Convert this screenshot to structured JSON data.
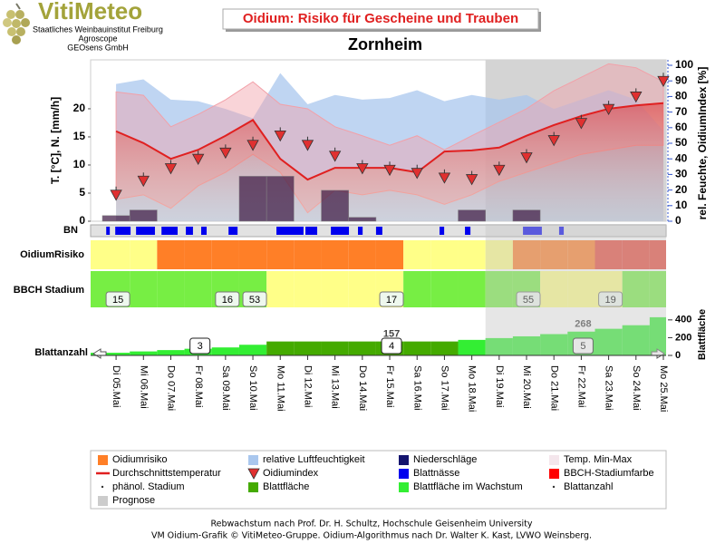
{
  "header": {
    "logo": "VitiMeteo",
    "institutions": [
      "Staatliches Weinbauinstitut Freiburg",
      "Agroscope",
      "GEOsens GmbH"
    ]
  },
  "chart_data": {
    "type": "combo",
    "title": "Oidium: Risiko für Gescheine und Trauben",
    "subtitle": "Zornheim",
    "categories": [
      "Di 05.Mai",
      "Mi 06.Mai",
      "Do 07.Mai",
      "Fr 08.Mai",
      "Sa 09.Mai",
      "So 10.Mai",
      "Mo 11.Mai",
      "Di 12.Mai",
      "Mi 13.Mai",
      "Do 14.Mai",
      "Fr 15.Mai",
      "Sa 16.Mai",
      "So 17.Mai",
      "Mo 18.Mai",
      "Di 19.Mai",
      "Mi 20.Mai",
      "Do 21.Mai",
      "Fr 22.Mai",
      "Sa 23.Mai",
      "So 24.Mai",
      "Mo 25.Mai"
    ],
    "forecast_start": 14,
    "main": {
      "ylabel": "T. [°C], N. [mm/h]",
      "y2label": "rel. Feuchte, OidiumIndex [%]",
      "ylim": [
        0,
        28.7
      ],
      "yticks": [
        0,
        5,
        10,
        15,
        20
      ],
      "y2lim": [
        0,
        103.5
      ],
      "y2ticks": [
        0,
        10,
        20,
        30,
        40,
        50,
        60,
        70,
        80,
        90,
        100
      ],
      "humidity": {
        "color": "#a9c7ee",
        "axis": "y2",
        "values": [
          88,
          91,
          78,
          77,
          72,
          66,
          95,
          75,
          81,
          78,
          79,
          84,
          77,
          81,
          78,
          81,
          72,
          78,
          84,
          78,
          58
        ]
      },
      "temp_range": {
        "color": "#f2a0a8",
        "max": [
          23,
          22.4,
          16.8,
          19,
          21.6,
          24.8,
          20.8,
          20,
          16.8,
          15.2,
          13.5,
          15.2,
          12.7,
          15.2,
          17.6,
          20,
          23.2,
          25.6,
          28,
          27.3,
          24.8
        ],
        "min": [
          3.9,
          4.7,
          2.3,
          6.3,
          8.7,
          11.9,
          8.7,
          1.5,
          5.5,
          4.7,
          5.5,
          4.7,
          3,
          4.7,
          7.1,
          8.7,
          10.3,
          11.9,
          12.7,
          13.5,
          13.5
        ]
      },
      "temp_avg": {
        "color": "#e02020",
        "values": [
          16,
          13.9,
          11.1,
          12.7,
          15.2,
          18,
          11.1,
          7.4,
          9.5,
          9.5,
          9.5,
          8.7,
          12.4,
          12.6,
          13.1,
          15.2,
          17.1,
          18.7,
          20,
          20.6,
          21
        ]
      },
      "oidium_index": {
        "color": "#e03030",
        "axis": "y2",
        "values": [
          17,
          26,
          34,
          40,
          44,
          49,
          55,
          49,
          42,
          34,
          33,
          31,
          28,
          27,
          33,
          41,
          52,
          63,
          72,
          80,
          90
        ]
      },
      "precipitation": {
        "color": "#3a1540",
        "values": [
          1,
          2,
          0,
          0,
          0,
          8,
          8,
          0,
          5.5,
          0.7,
          0,
          0,
          0,
          2,
          0,
          2,
          0,
          0,
          0,
          0,
          0
        ]
      }
    },
    "leaf_wetness": {
      "label": "BN",
      "color": "#0000ee",
      "intervals": [
        [
          -0.36,
          -0.23
        ],
        [
          -0.03,
          0.53
        ],
        [
          0.73,
          1.42
        ],
        [
          1.66,
          2.25
        ],
        [
          2.55,
          2.81
        ],
        [
          3.11,
          3.31
        ],
        [
          4.11,
          4.44
        ],
        [
          5.86,
          6.85
        ],
        [
          6.92,
          7.35
        ],
        [
          7.85,
          8.51
        ],
        [
          8.84,
          9.01
        ],
        [
          9.5,
          9.73
        ],
        [
          11.82,
          11.99
        ],
        [
          12.75,
          12.95
        ],
        [
          14.87,
          15.56
        ],
        [
          16.19,
          16.36
        ]
      ]
    },
    "risk": {
      "label": "OidiumRisiko",
      "levels": [
        0,
        0,
        1,
        1,
        1,
        1,
        1,
        1,
        1,
        1,
        1,
        0,
        0,
        0,
        0,
        1,
        1,
        1,
        2,
        2,
        2
      ],
      "colors": [
        "#ffff88",
        "#ff7f27",
        "#e8473a"
      ]
    },
    "bbch": {
      "label": "BBCH Stadium",
      "colors": [
        "#77ee44",
        "#77ee44",
        "#77ee44",
        "#77ee44",
        "#77ee44",
        "#77ee44",
        "#ffff88",
        "#ffff88",
        "#ffff88",
        "#ffff88",
        "#ffff88",
        "#77ee44",
        "#77ee44",
        "#77ee44",
        "#77ee44",
        "#77ee44",
        "#ffff88",
        "#ffff88",
        "#ffff88",
        "#77ee44",
        "#77ee44"
      ],
      "stages": [
        15,
        null,
        null,
        null,
        16,
        53,
        null,
        null,
        null,
        null,
        17,
        null,
        null,
        null,
        null,
        55,
        null,
        null,
        19,
        null,
        null
      ]
    },
    "leaves": {
      "label": "Blattanzahl",
      "y2label": "Blattfläche",
      "ylim": [
        0,
        480
      ],
      "yticks": [
        0,
        200,
        400
      ],
      "area": {
        "values": [
          30,
          45,
          60,
          75,
          90,
          120,
          157,
          157,
          157,
          157,
          157,
          157,
          157,
          175,
          195,
          215,
          240,
          268,
          300,
          340,
          430
        ],
        "value_labels": [
          null,
          null,
          null,
          null,
          null,
          null,
          null,
          null,
          null,
          null,
          "157",
          null,
          null,
          null,
          null,
          null,
          null,
          "268",
          null,
          null,
          null
        ],
        "growing": [
          true,
          true,
          true,
          true,
          true,
          true,
          false,
          false,
          false,
          false,
          false,
          false,
          false,
          true,
          true,
          true,
          true,
          true,
          true,
          true,
          true
        ]
      },
      "colors": {
        "growth": "#33ee33",
        "static": "#44aa00"
      },
      "count": [
        null,
        null,
        null,
        3,
        null,
        null,
        null,
        null,
        null,
        null,
        4,
        null,
        null,
        null,
        null,
        null,
        null,
        5,
        null,
        null,
        null
      ]
    }
  },
  "legend": [
    {
      "name": "Oidiumrisiko",
      "color": "#ff7f27",
      "symbol": "square"
    },
    {
      "name": "relative Luftfeuchtigkeit",
      "color": "#a9c7ee",
      "symbol": "square"
    },
    {
      "name": "Niederschläge",
      "color": "#14146e",
      "symbol": "square"
    },
    {
      "name": "Temp. Min-Max",
      "color": "#f4e6ec",
      "symbol": "square"
    },
    {
      "name": "Durchschnittstemperatur",
      "color": "#e02020",
      "symbol": "line"
    },
    {
      "name": "Oidiumindex",
      "color": "#e03030",
      "symbol": "triangle"
    },
    {
      "name": "Blattnässe",
      "color": "#0000ee",
      "symbol": "square"
    },
    {
      "name": "BBCH-Stadiumfarbe",
      "color": "#ff0000",
      "symbol": "square"
    },
    {
      "name": "phänol. Stadium",
      "color": "#333333",
      "symbol": "dot"
    },
    {
      "name": "Blattfläche",
      "color": "#44aa00",
      "symbol": "square"
    },
    {
      "name": "Blattfläche im Wachstum",
      "color": "#33ee33",
      "symbol": "square"
    },
    {
      "name": "Blattanzahl",
      "color": "#333333",
      "symbol": "dot"
    },
    {
      "name": "Prognose",
      "color": "#cccccc",
      "symbol": "square"
    }
  ],
  "footer": [
    "Rebwachstum nach Prof. Dr. H. Schultz, Hochschule Geisenheim University",
    "VM Oidium-Grafik © VitiMeteo-Gruppe. Oidium-Algorithmus nach Dr. Walter K. Kast, LVWO Weinsberg."
  ]
}
